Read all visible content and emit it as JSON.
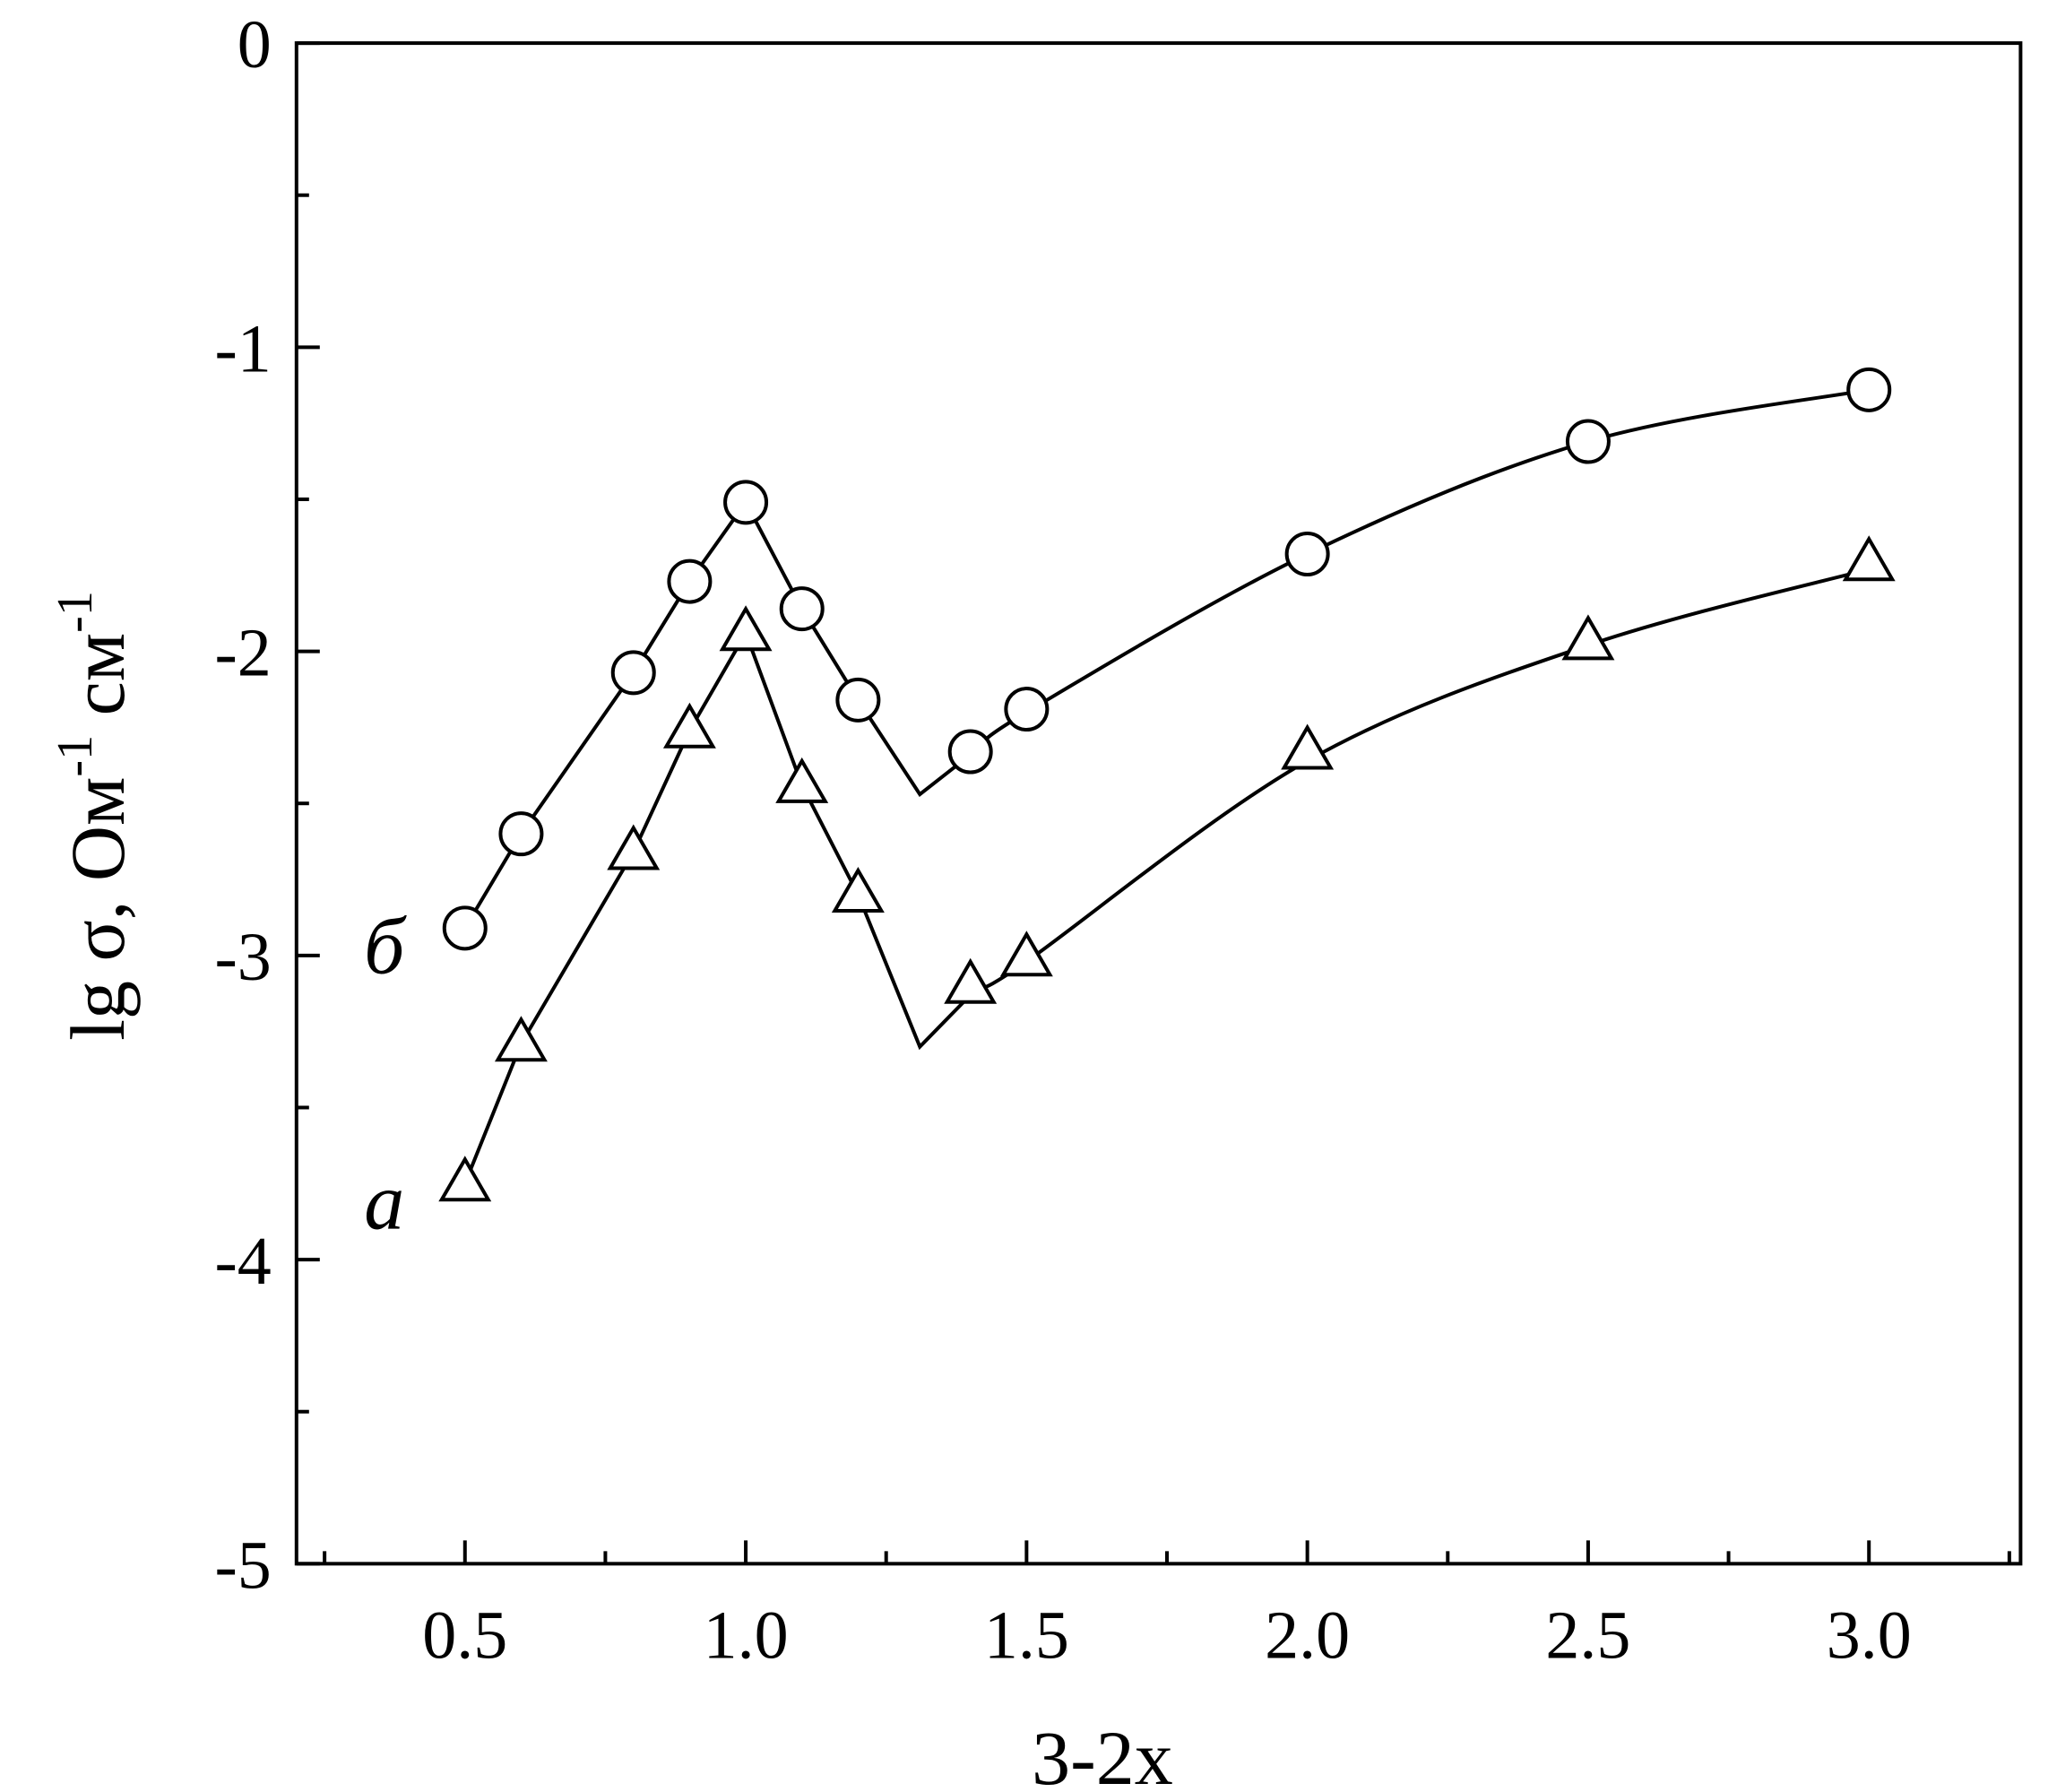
{
  "chart_data": {
    "type": "scatter",
    "xlabel": "3-2x",
    "ylabel": [
      "lg σ, Ом",
      "-1",
      " см",
      "-1"
    ],
    "xlim": [
      0.2,
      3.27
    ],
    "ylim": [
      -5,
      0
    ],
    "xticks": [
      {
        "value": 0.5,
        "label": "0.5"
      },
      {
        "value": 1,
        "label": "1.0"
      },
      {
        "value": 1.5,
        "label": "1.5"
      },
      {
        "value": 2,
        "label": "2.0"
      },
      {
        "value": 2.5,
        "label": "2.5"
      },
      {
        "value": 3,
        "label": "3.0"
      }
    ],
    "yticks": [
      0,
      -1,
      -2,
      -3,
      -4,
      -5
    ],
    "x_minor_ticks": [
      0.25,
      0.75,
      1.25,
      1.75,
      2.25,
      2.75,
      3.25
    ],
    "y_minor_ticks": [
      -0.5,
      -1.5,
      -2.5,
      -3.5,
      -4.5
    ],
    "series": [
      {
        "name": "б",
        "marker": "circle",
        "color": "#000",
        "x": [
          0.5,
          0.6,
          0.8,
          0.9,
          1.0,
          1.1,
          1.2,
          1.4,
          1.5,
          2.0,
          2.5,
          3.0
        ],
        "values": [
          -2.91,
          -2.6,
          -2.07,
          -1.77,
          -1.51,
          -1.86,
          -2.16,
          -2.33,
          -2.19,
          -1.68,
          -1.31,
          -1.14
        ],
        "curve": {
          "x": [
            0.5,
            0.6,
            0.8,
            0.9,
            1.0,
            1.1,
            1.2,
            1.31,
            1.4,
            1.5,
            2.0,
            2.5,
            3.0
          ],
          "y": [
            -2.91,
            -2.6,
            -2.07,
            -1.77,
            -1.51,
            -1.86,
            -2.16,
            -2.47,
            -2.34,
            -2.2,
            -1.68,
            -1.31,
            -1.14
          ]
        }
      },
      {
        "name": "а",
        "marker": "triangle",
        "color": "#000",
        "x": [
          0.5,
          0.6,
          0.8,
          0.9,
          1.0,
          1.1,
          1.2,
          1.4,
          1.5,
          2.0,
          2.5,
          3.0
        ],
        "values": [
          -3.75,
          -3.29,
          -2.66,
          -2.26,
          -1.94,
          -2.44,
          -2.8,
          -3.1,
          -3.01,
          -2.33,
          -1.97,
          -1.71
        ],
        "curve": {
          "x": [
            0.5,
            0.6,
            0.8,
            0.9,
            1.0,
            1.1,
            1.2,
            1.31,
            1.4,
            1.5,
            2.0,
            2.5,
            3.0
          ],
          "y": [
            -3.75,
            -3.29,
            -2.66,
            -2.26,
            -1.94,
            -2.44,
            -2.8,
            -3.3,
            -3.13,
            -3.02,
            -2.36,
            -1.98,
            -1.73
          ]
        }
      }
    ]
  }
}
